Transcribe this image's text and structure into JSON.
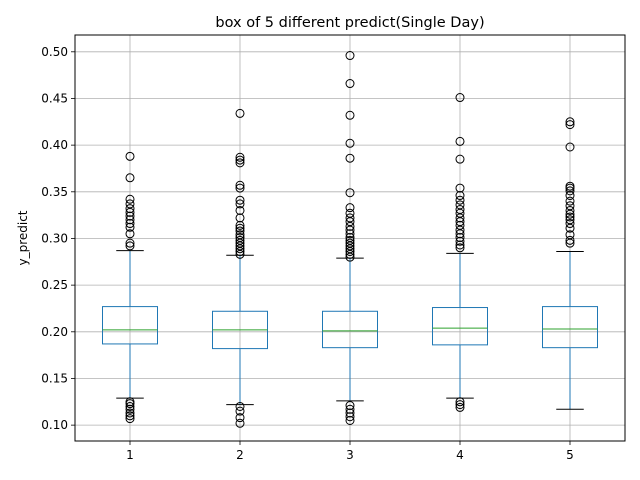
{
  "chart_data": {
    "type": "box",
    "title": "box of 5 different predict(Single Day)",
    "xlabel": "",
    "ylabel": "y_predict",
    "categories": [
      "1",
      "2",
      "3",
      "4",
      "5"
    ],
    "ylim": [
      0.083,
      0.518
    ],
    "yticks": [
      0.1,
      0.15,
      0.2,
      0.25,
      0.3,
      0.35,
      0.4,
      0.45,
      0.5
    ],
    "ytick_labels": [
      "0.10",
      "0.15",
      "0.20",
      "0.25",
      "0.30",
      "0.35",
      "0.40",
      "0.45",
      "0.50"
    ],
    "grid": true,
    "colors": {
      "box": "#1f77b4",
      "median": "#2ca02c",
      "flier": "#000000",
      "grid": "#b0b0b0"
    },
    "boxes": [
      {
        "label": "1",
        "whisker_low": 0.129,
        "q1": 0.187,
        "median": 0.202,
        "q3": 0.227,
        "whisker_high": 0.287,
        "fliers": [
          0.107,
          0.11,
          0.113,
          0.117,
          0.12,
          0.123,
          0.125,
          0.292,
          0.295,
          0.305,
          0.312,
          0.316,
          0.32,
          0.324,
          0.328,
          0.332,
          0.337,
          0.342,
          0.365,
          0.388
        ]
      },
      {
        "label": "2",
        "whisker_low": 0.122,
        "q1": 0.182,
        "median": 0.202,
        "q3": 0.222,
        "whisker_high": 0.282,
        "fliers": [
          0.102,
          0.108,
          0.115,
          0.12,
          0.283,
          0.286,
          0.289,
          0.292,
          0.295,
          0.298,
          0.301,
          0.304,
          0.308,
          0.311,
          0.314,
          0.322,
          0.33,
          0.337,
          0.341,
          0.354,
          0.357,
          0.381,
          0.384,
          0.387,
          0.434
        ]
      },
      {
        "label": "3",
        "whisker_low": 0.126,
        "q1": 0.183,
        "median": 0.201,
        "q3": 0.222,
        "whisker_high": 0.279,
        "fliers": [
          0.105,
          0.109,
          0.113,
          0.117,
          0.121,
          0.28,
          0.283,
          0.286,
          0.289,
          0.292,
          0.295,
          0.298,
          0.301,
          0.305,
          0.309,
          0.313,
          0.318,
          0.322,
          0.327,
          0.333,
          0.349,
          0.386,
          0.402,
          0.432,
          0.466,
          0.496
        ]
      },
      {
        "label": "4",
        "whisker_low": 0.129,
        "q1": 0.186,
        "median": 0.204,
        "q3": 0.226,
        "whisker_high": 0.284,
        "fliers": [
          0.119,
          0.122,
          0.125,
          0.29,
          0.293,
          0.297,
          0.301,
          0.305,
          0.309,
          0.314,
          0.318,
          0.322,
          0.327,
          0.331,
          0.336,
          0.341,
          0.346,
          0.354,
          0.385,
          0.404,
          0.451
        ]
      },
      {
        "label": "5",
        "whisker_low": 0.117,
        "q1": 0.183,
        "median": 0.203,
        "q3": 0.227,
        "whisker_high": 0.286,
        "fliers": [
          0.295,
          0.298,
          0.304,
          0.311,
          0.316,
          0.32,
          0.323,
          0.326,
          0.33,
          0.335,
          0.34,
          0.346,
          0.351,
          0.354,
          0.356,
          0.398,
          0.422,
          0.425
        ]
      }
    ]
  }
}
